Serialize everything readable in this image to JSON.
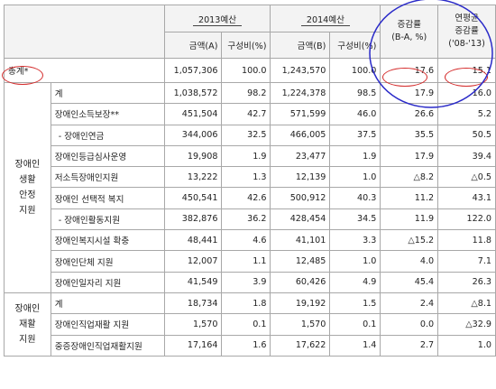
{
  "header": {
    "budget2013": "2013예산",
    "budget2014": "2014예산",
    "amountA": "금액(A)",
    "share1": "구성비(%)",
    "amountB": "금액(B)",
    "share2": "구성비(%)",
    "change_l1": "증감률",
    "change_l2": "(B-A, %)",
    "avg_l1": "연평균",
    "avg_l2": "증감률",
    "avg_l3": "('08-'13)"
  },
  "total": {
    "label": "총계*",
    "a": "1,057,306",
    "a_share": "100.0",
    "b": "1,243,570",
    "b_share": "100.0",
    "change": "17.6",
    "avg": "15.1"
  },
  "groups": [
    {
      "lines": [
        "장애인",
        "생활",
        "안정",
        "지원"
      ],
      "rows": [
        {
          "label": "계",
          "a": "1,038,572",
          "a_share": "98.2",
          "b": "1,224,378",
          "b_share": "98.5",
          "change": "17.9",
          "avg": "16.0"
        },
        {
          "label": "장애인소득보장**",
          "a": "451,504",
          "a_share": "42.7",
          "b": "571,599",
          "b_share": "46.0",
          "change": "26.6",
          "avg": "5.2"
        },
        {
          "label": "- 장애인연금",
          "a": "344,006",
          "a_share": "32.5",
          "b": "466,005",
          "b_share": "37.5",
          "change": "35.5",
          "avg": "50.5"
        },
        {
          "label": "장애인등급심사운영",
          "a": "19,908",
          "a_share": "1.9",
          "b": "23,477",
          "b_share": "1.9",
          "change": "17.9",
          "avg": "39.4"
        },
        {
          "label": "저소득장애인지원",
          "a": "13,222",
          "a_share": "1.3",
          "b": "12,139",
          "b_share": "1.0",
          "change": "△8.2",
          "avg": "△0.5"
        },
        {
          "label": "장애인 선택적 복지",
          "a": "450,541",
          "a_share": "42.6",
          "b": "500,912",
          "b_share": "40.3",
          "change": "11.2",
          "avg": "43.1"
        },
        {
          "label": "- 장애인활동지원",
          "a": "382,876",
          "a_share": "36.2",
          "b": "428,454",
          "b_share": "34.5",
          "change": "11.9",
          "avg": "122.0"
        },
        {
          "label": "장애인복지시설 확충",
          "a": "48,441",
          "a_share": "4.6",
          "b": "41,101",
          "b_share": "3.3",
          "change": "△15.2",
          "avg": "11.8"
        },
        {
          "label": "장애인단체 지원",
          "a": "12,007",
          "a_share": "1.1",
          "b": "12,485",
          "b_share": "1.0",
          "change": "4.0",
          "avg": "7.1"
        },
        {
          "label": "장애인일자리 지원",
          "a": "41,549",
          "a_share": "3.9",
          "b": "60,426",
          "b_share": "4.9",
          "change": "45.4",
          "avg": "26.3"
        }
      ]
    },
    {
      "lines": [
        "장애인",
        "재활",
        "지원"
      ],
      "rows": [
        {
          "label": "계",
          "a": "18,734",
          "a_share": "1.8",
          "b": "19,192",
          "b_share": "1.5",
          "change": "2.4",
          "avg": "△8.1"
        },
        {
          "label": "장애인직업재활 지원",
          "a": "1,570",
          "a_share": "0.1",
          "b": "1,570",
          "b_share": "0.1",
          "change": "0.0",
          "avg": "△32.9"
        },
        {
          "label": "중증장애인직업재활지원",
          "a": "17,164",
          "a_share": "1.6",
          "b": "17,622",
          "b_share": "1.4",
          "change": "2.7",
          "avg": "1.0"
        }
      ]
    }
  ],
  "annotations": {
    "circle_color": "#2a2ac8",
    "oval_color": "#d42a2a"
  }
}
